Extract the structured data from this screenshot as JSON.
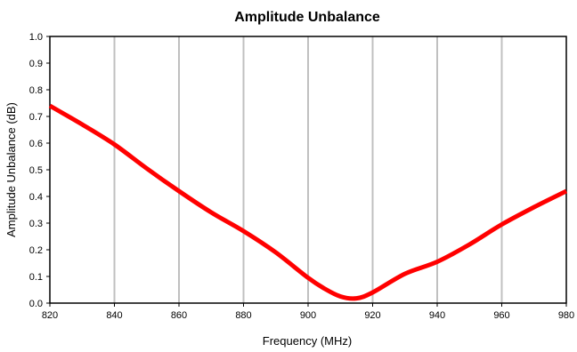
{
  "chart_data": {
    "type": "line",
    "title": "Amplitude Unbalance",
    "xlabel": "Frequency (MHz)",
    "ylabel": "Amplitude Unbalance (dB)",
    "xlim": [
      820,
      980
    ],
    "ylim": [
      0.0,
      1.0
    ],
    "x_ticks": [
      "820",
      "840",
      "860",
      "880",
      "900",
      "920",
      "940",
      "960",
      "980"
    ],
    "y_ticks": [
      "0.0",
      "0.1",
      "0.2",
      "0.3",
      "0.4",
      "0.5",
      "0.6",
      "0.7",
      "0.8",
      "0.9",
      "1.0"
    ],
    "grid": "vertical",
    "series": [
      {
        "color": "#ff0000",
        "x": [
          820,
          830,
          840,
          850,
          860,
          870,
          880,
          890,
          900,
          905,
          910,
          915,
          920,
          930,
          940,
          950,
          960,
          970,
          980
        ],
        "values": [
          0.74,
          0.67,
          0.595,
          0.505,
          0.42,
          0.34,
          0.27,
          0.19,
          0.095,
          0.055,
          0.025,
          0.018,
          0.04,
          0.11,
          0.155,
          0.22,
          0.295,
          0.36,
          0.42
        ]
      }
    ]
  }
}
